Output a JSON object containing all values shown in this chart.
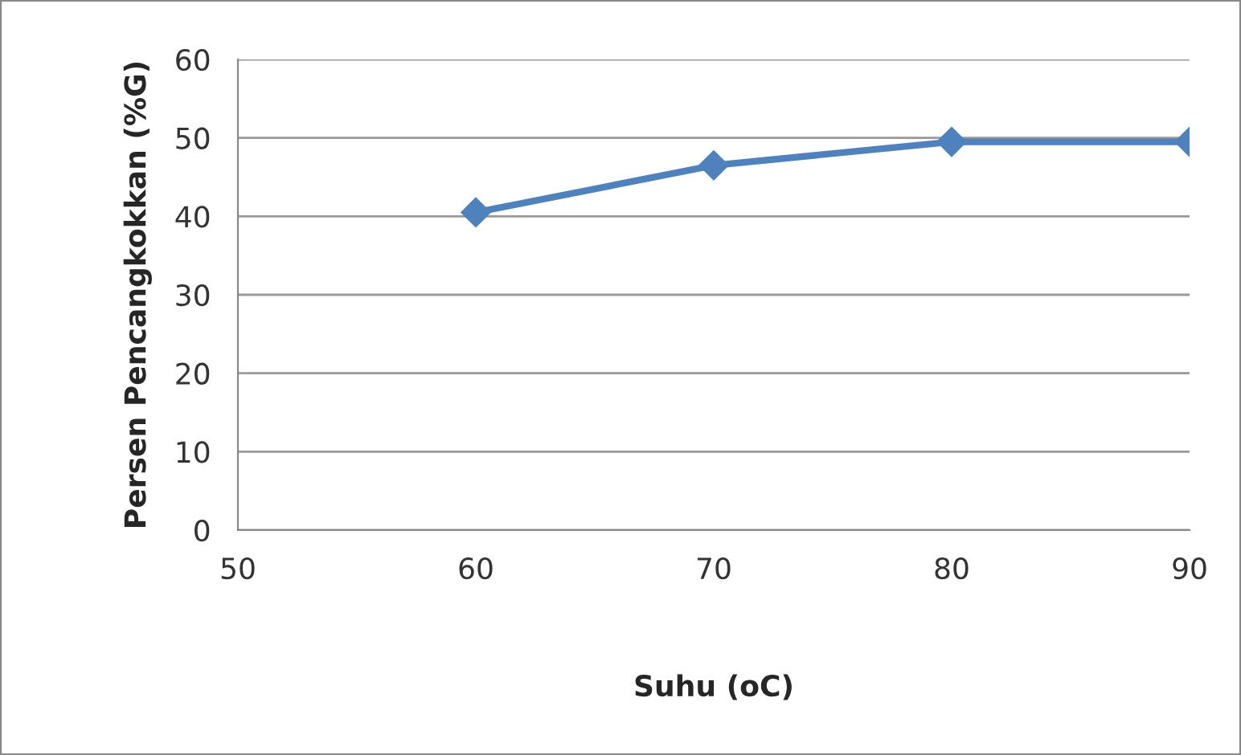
{
  "chart_data": {
    "type": "line",
    "xlabel": "Suhu (oC)",
    "ylabel": "Persen Pencangkokkan (%G)",
    "x": [
      60,
      70,
      80,
      90
    ],
    "series": [
      {
        "color": "#4f81bd",
        "values": [
          40.5,
          46.5,
          49.5,
          49.5
        ]
      }
    ],
    "xlim": [
      50,
      90
    ],
    "xticks": [
      50,
      60,
      70,
      80,
      90
    ],
    "ylim": [
      0,
      60
    ],
    "yticks": [
      0,
      10,
      20,
      30,
      40,
      50,
      60
    ],
    "grid": "y",
    "marker": "diamond",
    "line_style": "solid"
  }
}
